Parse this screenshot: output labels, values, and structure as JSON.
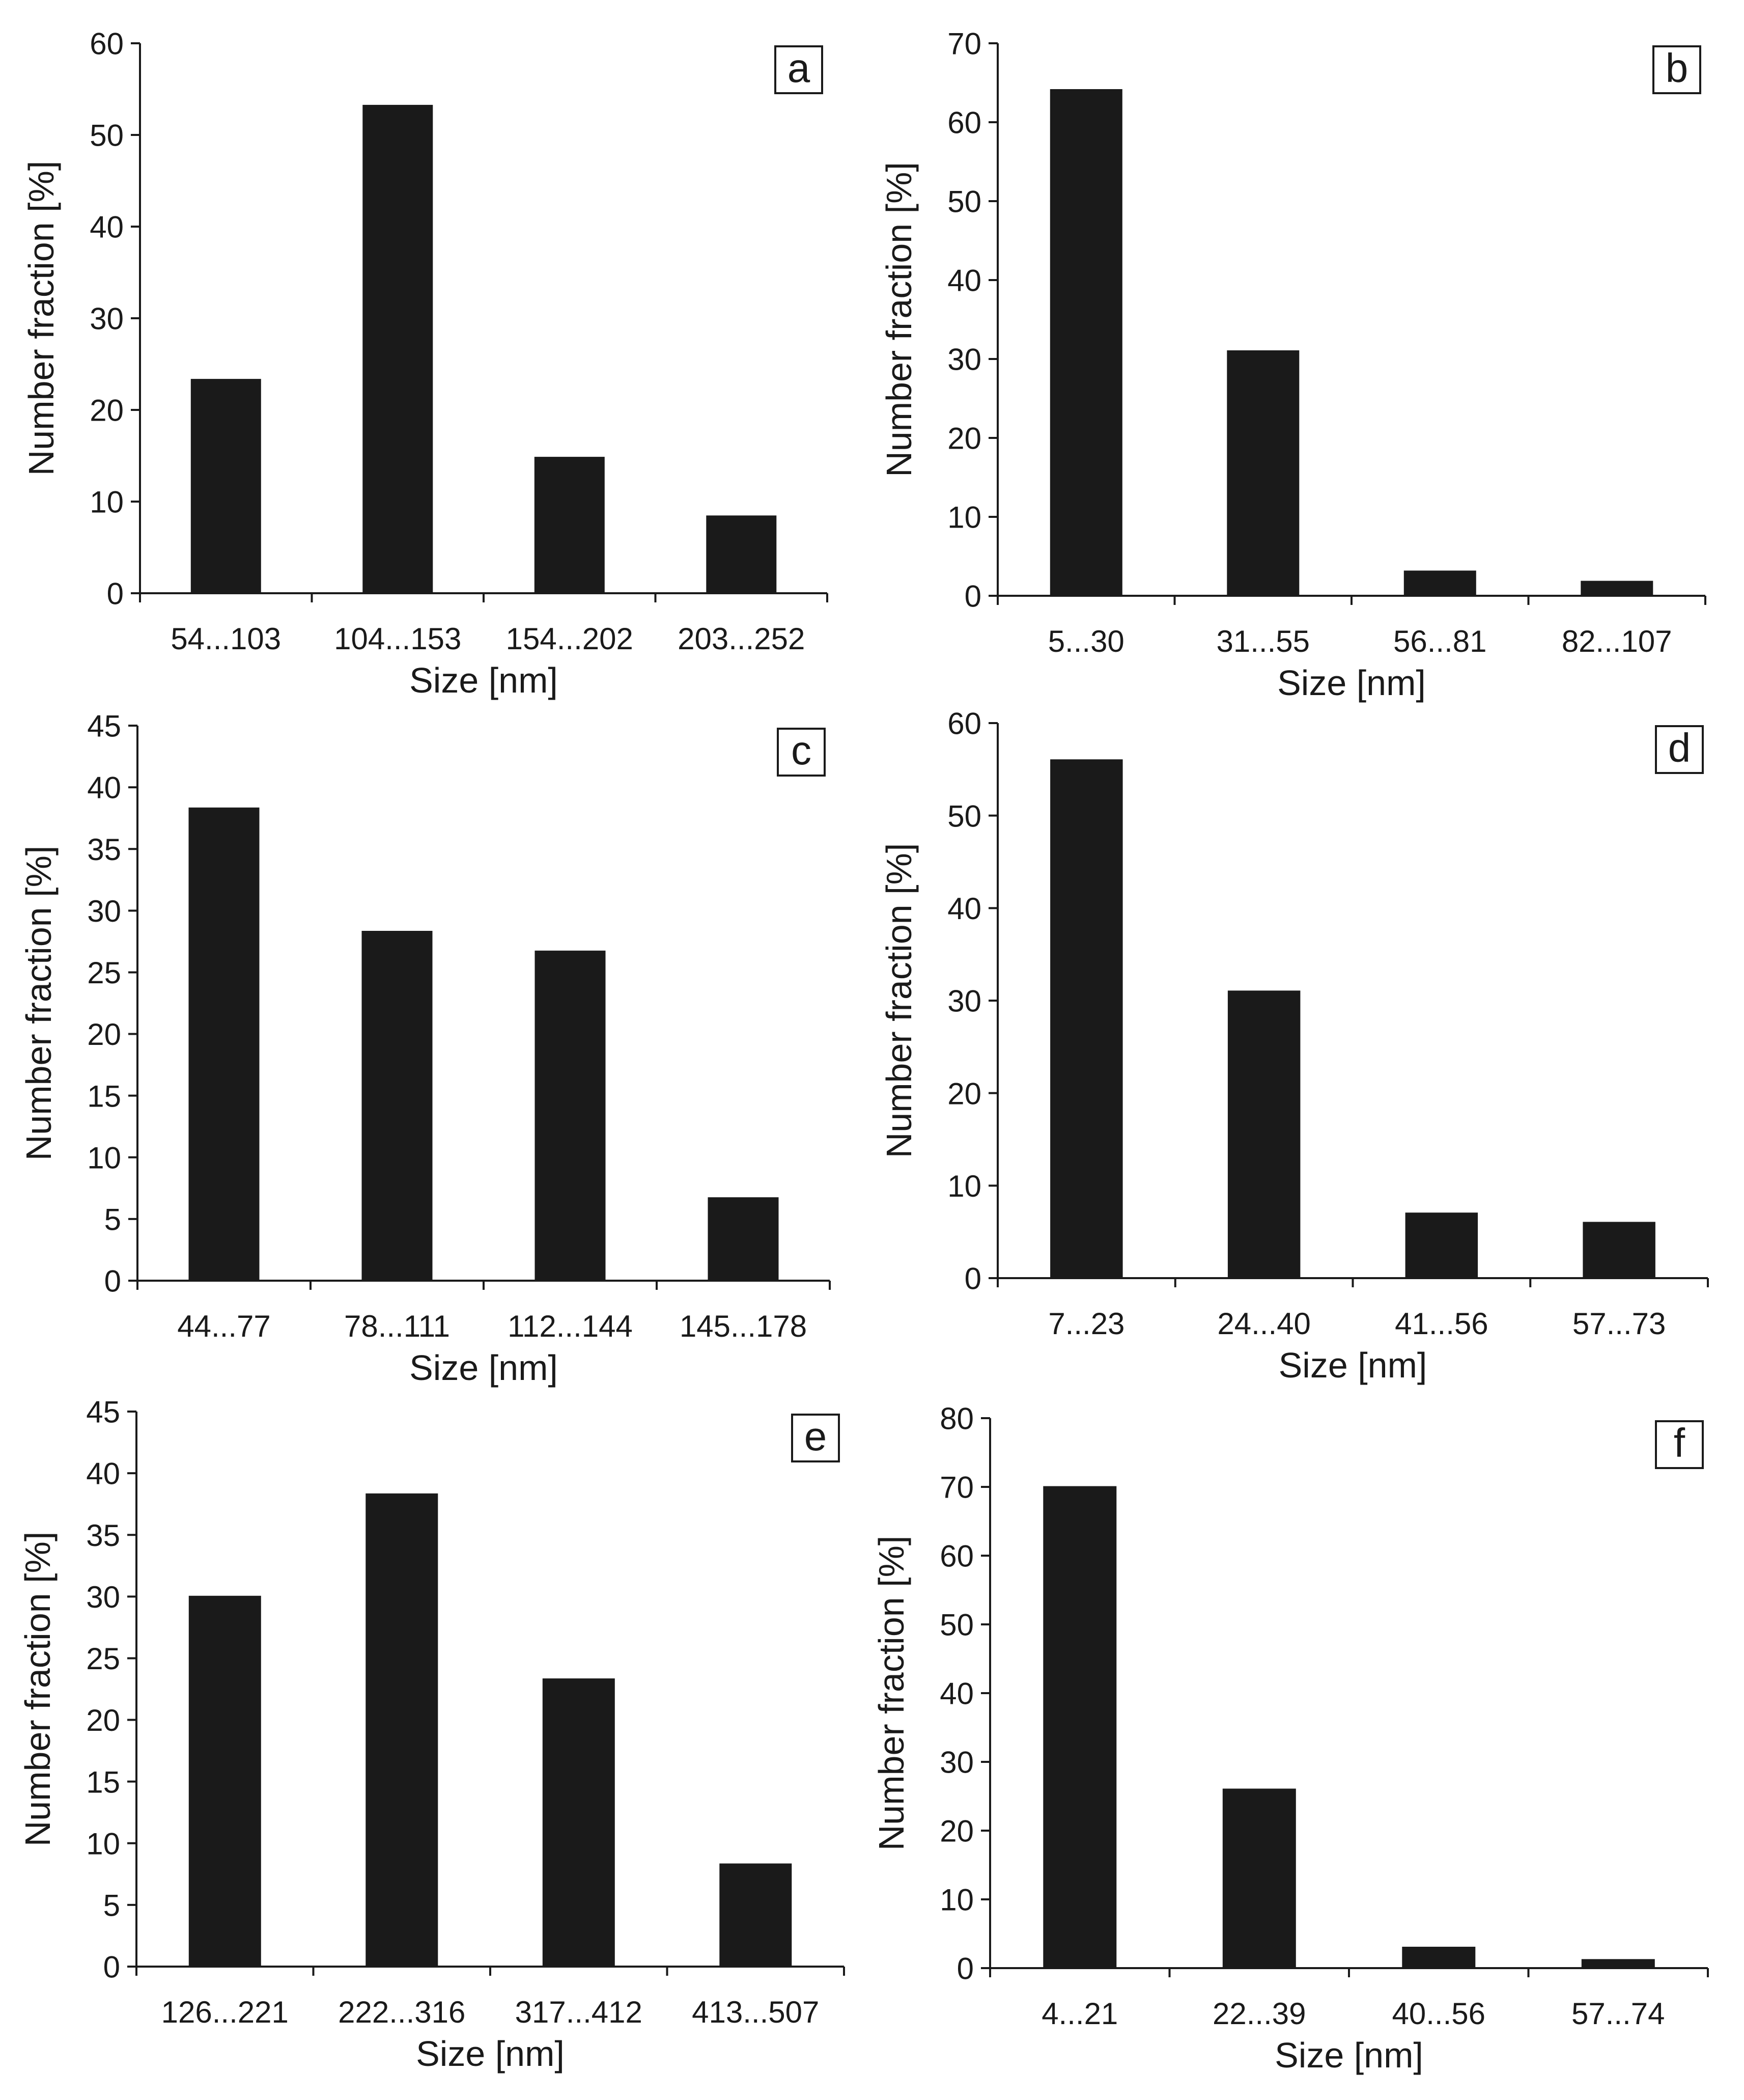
{
  "figure": {
    "panel_count": 6
  },
  "colors": {
    "bar": "#1a1a1a",
    "axis": "#1a1a1a",
    "background": "#ffffff"
  },
  "chart_data": [
    {
      "type": "bar",
      "panel_label": "a",
      "categories": [
        "54...103",
        "104...153",
        "154...202",
        "203...252"
      ],
      "values": [
        23.3,
        53.2,
        14.8,
        8.4
      ],
      "xlabel": "Size [nm]",
      "ylabel": "Number fraction [%]",
      "ylim": [
        0,
        60
      ],
      "yticks": [
        0,
        10,
        20,
        30,
        40,
        50,
        60
      ],
      "grid": false,
      "legend": "none"
    },
    {
      "type": "bar",
      "panel_label": "b",
      "categories": [
        "5...30",
        "31...55",
        "56...81",
        "82...107"
      ],
      "values": [
        64.1,
        31.0,
        3.1,
        1.8
      ],
      "xlabel": "Size [nm]",
      "ylabel": "Number fraction [%]",
      "ylim": [
        0,
        70
      ],
      "yticks": [
        0,
        10,
        20,
        30,
        40,
        50,
        60,
        70
      ],
      "grid": false,
      "legend": "none"
    },
    {
      "type": "bar",
      "panel_label": "c",
      "categories": [
        "44...77",
        "78...111",
        "112...144",
        "145...178"
      ],
      "values": [
        38.3,
        28.3,
        26.7,
        6.7
      ],
      "xlabel": "Size [nm]",
      "ylabel": "Number fraction [%]",
      "ylim": [
        0,
        45
      ],
      "yticks": [
        0,
        5,
        10,
        15,
        20,
        25,
        30,
        35,
        40,
        45
      ],
      "grid": false,
      "legend": "none"
    },
    {
      "type": "bar",
      "panel_label": "d",
      "categories": [
        "7...23",
        "24...40",
        "41...56",
        "57...73"
      ],
      "values": [
        56.0,
        31.0,
        7.0,
        6.0
      ],
      "xlabel": "Size [nm]",
      "ylabel": "Number fraction [%]",
      "ylim": [
        0,
        60
      ],
      "yticks": [
        0,
        10,
        20,
        30,
        40,
        50,
        60
      ],
      "grid": false,
      "legend": "none"
    },
    {
      "type": "bar",
      "panel_label": "e",
      "categories": [
        "126...221",
        "222...316",
        "317...412",
        "413...507"
      ],
      "values": [
        30.0,
        38.3,
        23.3,
        8.3
      ],
      "xlabel": "Size [nm]",
      "ylabel": "Number fraction [%]",
      "ylim": [
        0,
        45
      ],
      "yticks": [
        0,
        5,
        10,
        15,
        20,
        25,
        30,
        35,
        40,
        45
      ],
      "grid": false,
      "legend": "none"
    },
    {
      "type": "bar",
      "panel_label": "f",
      "categories": [
        "4...21",
        "22...39",
        "40...56",
        "57...74"
      ],
      "values": [
        70.0,
        26.0,
        3.0,
        1.2
      ],
      "xlabel": "Size [nm]",
      "ylabel": "Number fraction [%]",
      "ylim": [
        0,
        80
      ],
      "yticks": [
        0,
        10,
        20,
        30,
        40,
        50,
        60,
        70,
        80
      ],
      "grid": false,
      "legend": "none"
    }
  ]
}
